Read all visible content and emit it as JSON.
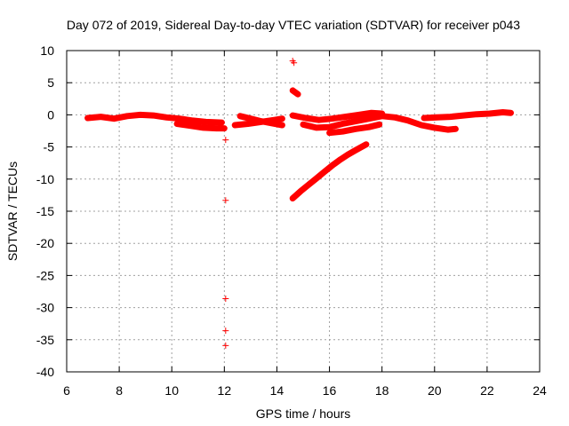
{
  "chart_data": {
    "type": "scatter",
    "title": "Day 072 of 2019, Sidereal Day-to-day VTEC variation (SDTVAR) for receiver p043",
    "xlabel": "GPS time / hours",
    "ylabel": "SDTVAR / TECUs",
    "xlim": [
      6,
      24
    ],
    "ylim": [
      -40,
      10
    ],
    "xticks": [
      6,
      8,
      10,
      12,
      14,
      16,
      18,
      20,
      22,
      24
    ],
    "yticks": [
      10,
      5,
      0,
      -5,
      -10,
      -15,
      -20,
      -25,
      -30,
      -35,
      -40
    ],
    "grid": true,
    "marker": "+",
    "series_color": "#ff0000",
    "segments": [
      {
        "name": "main-trace-a",
        "points": [
          [
            6.8,
            -0.5
          ],
          [
            7.3,
            -0.3
          ],
          [
            7.8,
            -0.6
          ],
          [
            8.3,
            -0.2
          ],
          [
            8.8,
            0.0
          ],
          [
            9.3,
            -0.1
          ],
          [
            9.8,
            -0.4
          ],
          [
            10.3,
            -0.6
          ],
          [
            10.8,
            -0.9
          ],
          [
            11.3,
            -1.1
          ],
          [
            11.9,
            -1.2
          ]
        ]
      },
      {
        "name": "main-trace-b",
        "points": [
          [
            10.2,
            -1.4
          ],
          [
            10.7,
            -1.7
          ],
          [
            11.2,
            -2.0
          ],
          [
            11.7,
            -2.1
          ],
          [
            12.0,
            -2.1
          ]
        ]
      },
      {
        "name": "main-trace-c",
        "points": [
          [
            12.4,
            -1.6
          ],
          [
            12.9,
            -1.4
          ],
          [
            13.4,
            -1.1
          ],
          [
            13.9,
            -0.8
          ],
          [
            14.2,
            -0.6
          ]
        ]
      },
      {
        "name": "main-trace-d",
        "points": [
          [
            12.6,
            -0.2
          ],
          [
            13.0,
            -0.6
          ],
          [
            13.4,
            -1.0
          ],
          [
            13.8,
            -1.3
          ],
          [
            14.2,
            -1.6
          ]
        ]
      },
      {
        "name": "main-trace-e",
        "points": [
          [
            14.6,
            -0.1
          ],
          [
            15.1,
            -0.5
          ],
          [
            15.6,
            -0.8
          ],
          [
            16.1,
            -0.6
          ],
          [
            16.6,
            -0.3
          ],
          [
            17.1,
            0.0
          ],
          [
            17.6,
            0.3
          ],
          [
            18.0,
            0.2
          ]
        ]
      },
      {
        "name": "main-trace-f",
        "points": [
          [
            15.0,
            -1.5
          ],
          [
            15.5,
            -2.0
          ],
          [
            16.0,
            -1.9
          ],
          [
            16.5,
            -1.4
          ],
          [
            17.0,
            -1.0
          ],
          [
            17.5,
            -0.6
          ],
          [
            18.0,
            -0.2
          ],
          [
            18.5,
            -0.4
          ],
          [
            19.0,
            -0.9
          ],
          [
            19.5,
            -1.6
          ],
          [
            20.0,
            -2.0
          ],
          [
            20.5,
            -2.3
          ],
          [
            20.8,
            -2.2
          ]
        ]
      },
      {
        "name": "main-trace-g",
        "points": [
          [
            16.0,
            -2.8
          ],
          [
            16.5,
            -2.6
          ],
          [
            17.0,
            -2.2
          ],
          [
            17.5,
            -1.9
          ],
          [
            17.9,
            -1.5
          ]
        ]
      },
      {
        "name": "main-trace-h",
        "points": [
          [
            19.6,
            -0.5
          ],
          [
            20.1,
            -0.4
          ],
          [
            20.6,
            -0.3
          ],
          [
            21.1,
            -0.1
          ],
          [
            21.6,
            0.1
          ],
          [
            22.1,
            0.2
          ],
          [
            22.6,
            0.4
          ],
          [
            22.9,
            0.3
          ]
        ]
      },
      {
        "name": "rising-arc",
        "points": [
          [
            14.6,
            -13.0
          ],
          [
            14.9,
            -11.9
          ],
          [
            15.2,
            -10.9
          ],
          [
            15.5,
            -9.9
          ],
          [
            15.8,
            -8.9
          ],
          [
            16.1,
            -7.9
          ],
          [
            16.4,
            -7.0
          ],
          [
            16.7,
            -6.2
          ],
          [
            17.0,
            -5.5
          ],
          [
            17.4,
            -4.6
          ]
        ]
      },
      {
        "name": "upper-short-line",
        "points": [
          [
            14.6,
            3.8
          ],
          [
            14.8,
            3.2
          ]
        ]
      }
    ],
    "isolated_points": [
      {
        "name": "point-upper-1",
        "x": 14.6,
        "y": 8.4
      },
      {
        "name": "point-upper-2",
        "x": 14.65,
        "y": 8.1
      },
      {
        "name": "point-12h-1",
        "x": 12.05,
        "y": -3.9
      },
      {
        "name": "point-12h-2",
        "x": 12.05,
        "y": -13.3
      },
      {
        "name": "point-12h-3",
        "x": 12.05,
        "y": -28.6
      },
      {
        "name": "point-12h-4",
        "x": 12.05,
        "y": -33.6
      },
      {
        "name": "point-12h-5",
        "x": 12.05,
        "y": -35.9
      }
    ]
  }
}
